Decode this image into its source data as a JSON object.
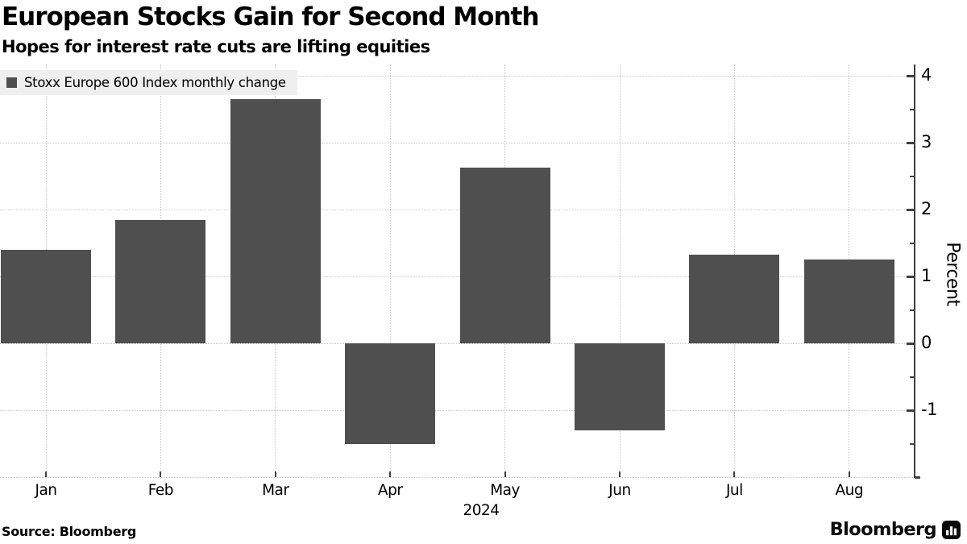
{
  "header": {
    "title": "European Stocks Gain for Second Month",
    "subtitle": "Hopes for interest rate cuts are lifting equities"
  },
  "legend": {
    "label": "Stoxx Europe 600 Index monthly change"
  },
  "chart_data": {
    "type": "bar",
    "title": "European Stocks Gain for Second Month",
    "subtitle": "Hopes for interest rate cuts are lifting equities",
    "series_name": "Stoxx Europe 600 Index monthly change",
    "categories": [
      "Jan",
      "Feb",
      "Mar",
      "Apr",
      "May",
      "Jun",
      "Jul",
      "Aug"
    ],
    "values": [
      1.4,
      1.85,
      3.65,
      -1.51,
      2.63,
      -1.3,
      1.32,
      1.25
    ],
    "xlabel_year": "2024",
    "ylabel": "Percent",
    "yticks": [
      -1,
      0,
      1,
      2,
      3,
      4
    ],
    "minor_tick_step": 0.5,
    "ylim": [
      -2,
      4.17
    ],
    "axis_side": "right",
    "grid": "dotted",
    "legend_position": "top-left"
  },
  "footer": {
    "source": "Source: Bloomberg",
    "brand": "Bloomberg"
  },
  "colors": {
    "bar": "#4f4f4f",
    "legend_swatch": "#4f4f4f",
    "legend_bg": "#efefef",
    "grid": "#c6c6c6",
    "axis": "#3f3f3f",
    "text": "#000000"
  }
}
